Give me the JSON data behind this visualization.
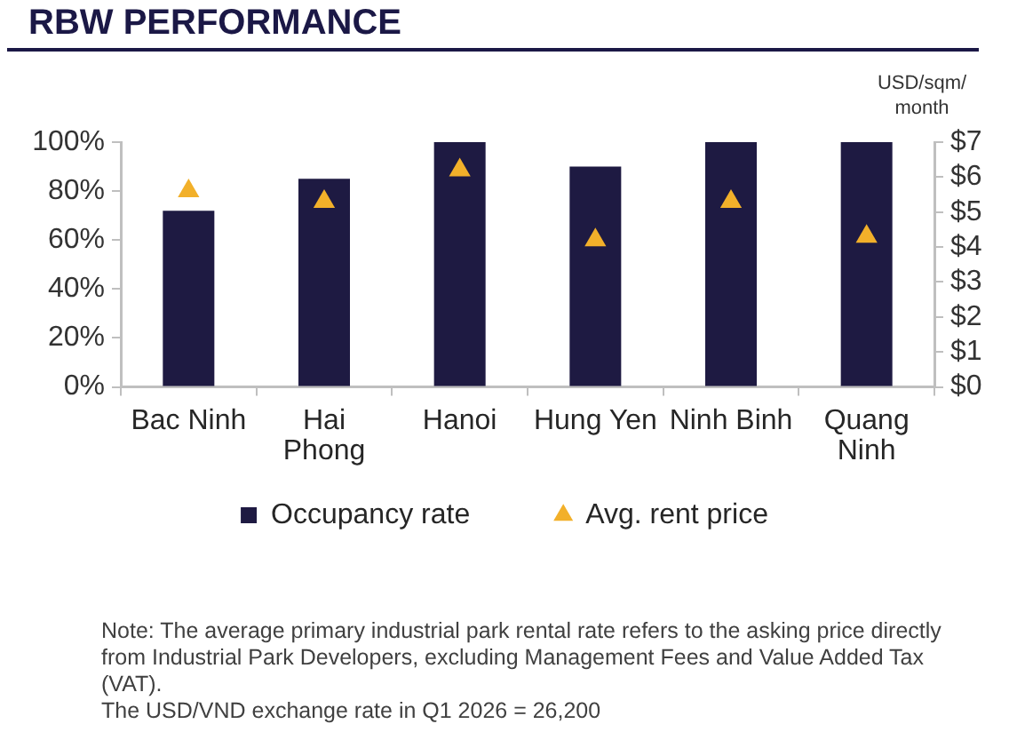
{
  "chart_data": {
    "type": "bar",
    "title": "RBW PERFORMANCE",
    "y2label": "USD/sqm/month",
    "categories": [
      "Bac Ninh",
      "Hai Phong",
      "Hanoi",
      "Hung Yen",
      "Ninh Binh",
      "Quang Ninh"
    ],
    "series": [
      {
        "name": "Occupancy rate",
        "type": "bar",
        "color": "#1e1a42",
        "values": [
          72,
          85,
          100,
          90,
          100,
          100
        ]
      },
      {
        "name": "Avg. rent price",
        "type": "scatter",
        "axis": "y2",
        "color": "#f2b02a",
        "values": [
          5.6,
          5.3,
          6.2,
          4.2,
          5.3,
          4.3
        ]
      }
    ],
    "marker": "triangle",
    "ylim": [
      0,
      100
    ],
    "yticks": [
      {
        "value": 0,
        "label": "0%"
      },
      {
        "value": 20,
        "label": "20%"
      },
      {
        "value": 40,
        "label": "40%"
      },
      {
        "value": 60,
        "label": "60%"
      },
      {
        "value": 80,
        "label": "80%"
      },
      {
        "value": 100,
        "label": "100%"
      }
    ],
    "y2lim": [
      0,
      7
    ],
    "y2ticks": [
      {
        "value": 0,
        "label": "$0"
      },
      {
        "value": 1,
        "label": "$1"
      },
      {
        "value": 2,
        "label": "$2"
      },
      {
        "value": 3,
        "label": "$3"
      },
      {
        "value": 4,
        "label": "$4"
      },
      {
        "value": 5,
        "label": "$5"
      },
      {
        "value": 6,
        "label": "$6"
      },
      {
        "value": 7,
        "label": "$7"
      }
    ],
    "legend": "bottom",
    "annotations": [
      "Note: The average primary industrial park rental rate refers to the asking price directly from Industrial Park Developers, excluding Management Fees and Value Added Tax (VAT).",
      "The USD/VND exchange rate in Q1 2026 = 26,200"
    ]
  }
}
